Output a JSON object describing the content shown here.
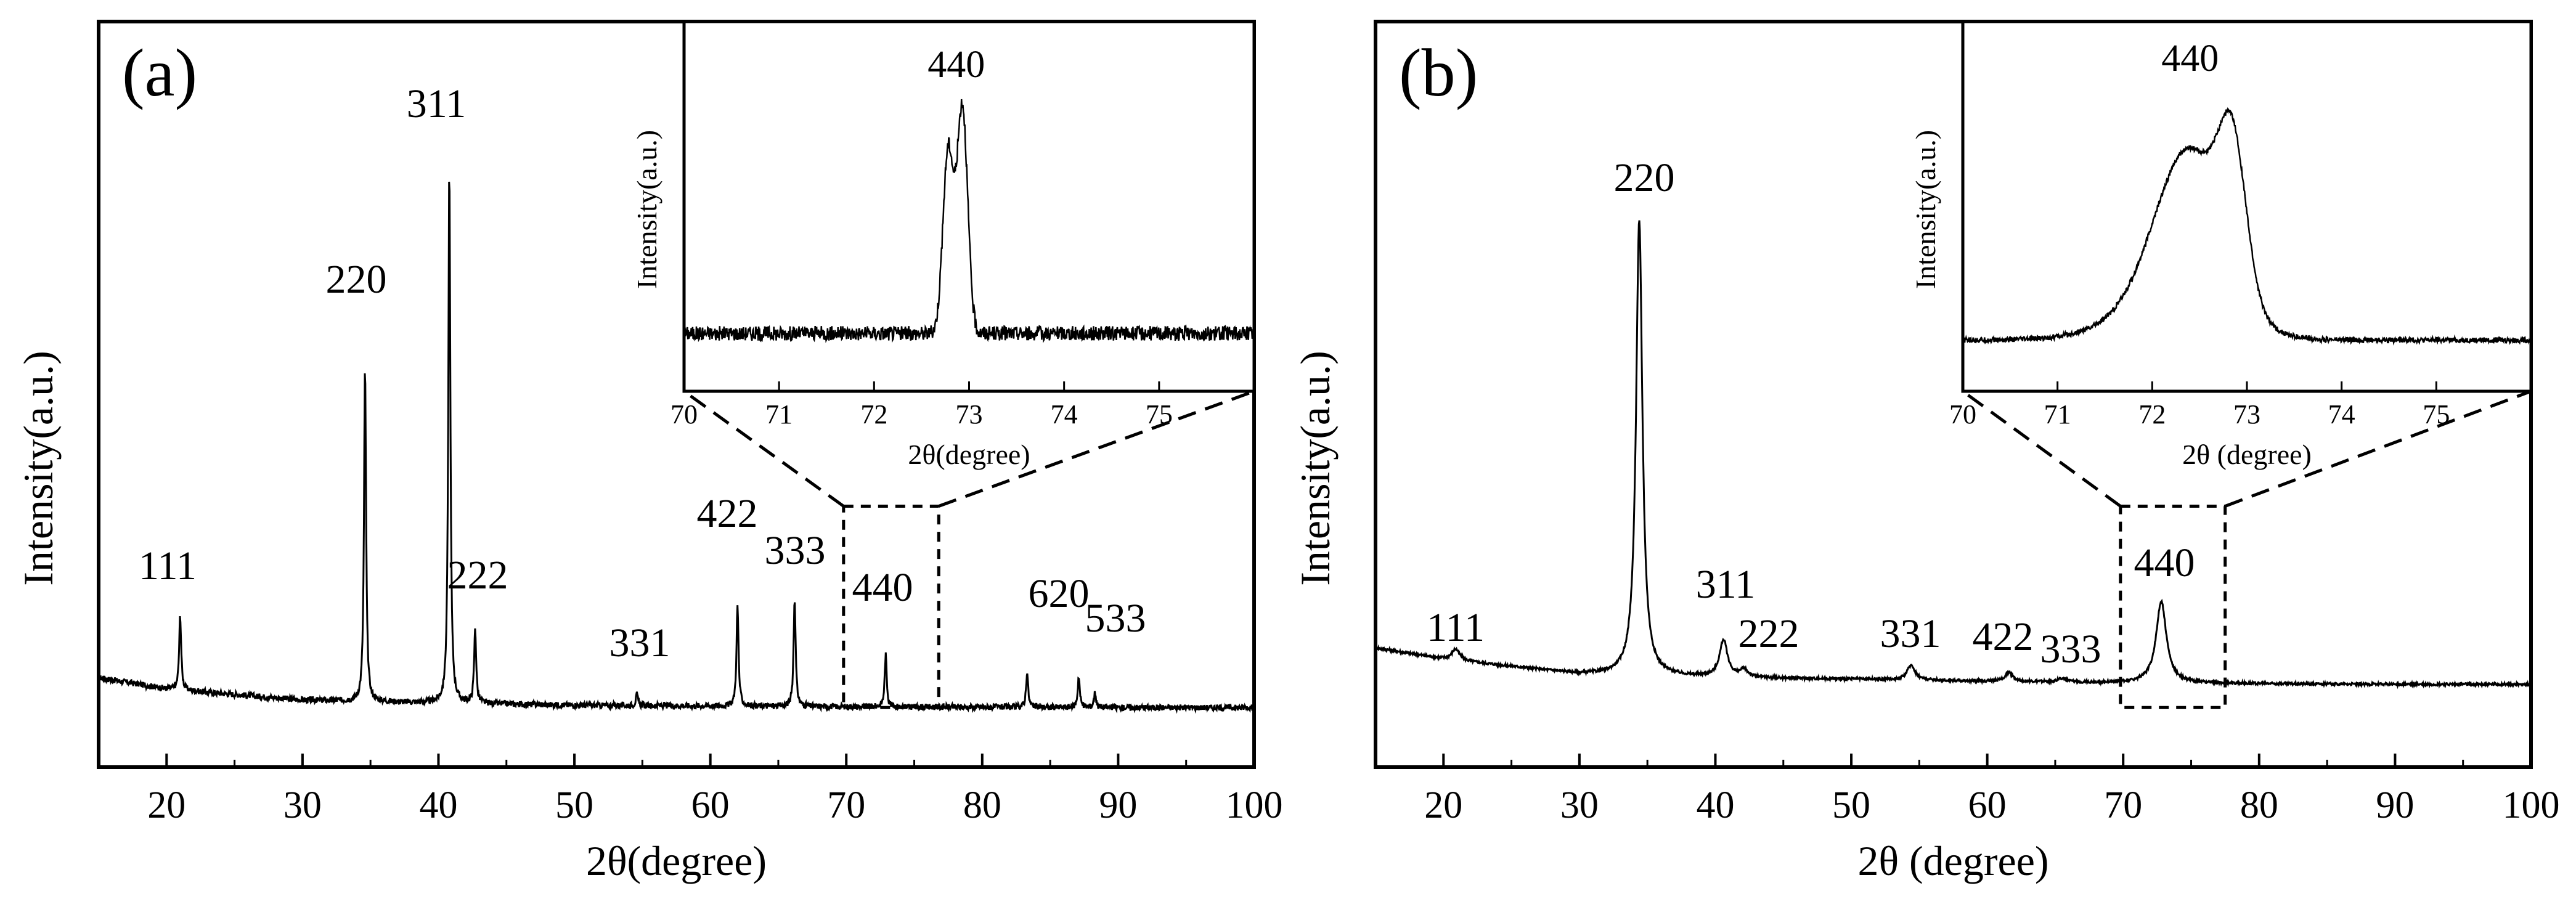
{
  "chart_data": [
    {
      "type": "line",
      "panel_label": "(a)",
      "xlabel": "2θ(degree)",
      "ylabel": "Intensity(a.u.)",
      "xlim": [
        15,
        100
      ],
      "ylim": [
        0,
        100
      ],
      "xticks": [
        20,
        30,
        40,
        50,
        60,
        70,
        80,
        90,
        100
      ],
      "baseline": {
        "x": [
          15,
          20,
          30,
          40,
          50,
          60,
          70,
          80,
          90,
          100
        ],
        "y": [
          12,
          10.5,
          9,
          8.6,
          8.3,
          8.2,
          8.1,
          8.05,
          8.0,
          8.0
        ]
      },
      "peaks": [
        {
          "label": "111",
          "x": 21.0,
          "height": 100,
          "h": 10.0
        },
        {
          "label": "220",
          "x": 34.6,
          "height": 100,
          "h": 45.0
        },
        {
          "label": "311",
          "x": 40.8,
          "height": 100,
          "h": 72.0
        },
        {
          "label": "222",
          "x": 42.7,
          "height": 100,
          "h": 10.0
        },
        {
          "label": "331",
          "x": 54.6,
          "height": 100,
          "h": 1.5
        },
        {
          "label": "422",
          "x": 62.0,
          "height": 100,
          "h": 13.5
        },
        {
          "label": "333",
          "x": 66.2,
          "height": 100,
          "h": 14.5
        },
        {
          "label": "440",
          "x": 72.9,
          "height": 100,
          "h": 7.0
        },
        {
          "label": "620",
          "x": 83.3,
          "height": 100,
          "h": 4.8
        },
        {
          "label": "533",
          "x": 87.1,
          "height": 100,
          "h": 4.2
        },
        {
          "label": "",
          "x": 88.3,
          "height": 100,
          "h": 2.0
        }
      ],
      "zoom_box": {
        "x": [
          69.8,
          76.8
        ],
        "y": [
          8,
          35
        ]
      },
      "inset": {
        "xlabel": "2θ(degree)",
        "ylabel": "Intensity(a.u.)",
        "peak_label": "440",
        "xlim": [
          70,
          76
        ],
        "xticks": [
          70,
          71,
          72,
          73,
          74,
          75
        ],
        "peaks": [
          {
            "x": 72.78,
            "h": 55,
            "w": 0.07
          },
          {
            "x": 72.93,
            "h": 68,
            "w": 0.07
          }
        ],
        "baseline": 10,
        "noise": 2.2
      }
    },
    {
      "type": "line",
      "panel_label": "(b)",
      "xlabel": "2θ (degree)",
      "ylabel": "Intensity(a.u.)",
      "xlim": [
        15,
        100
      ],
      "ylim": [
        0,
        100
      ],
      "xticks": [
        20,
        30,
        40,
        50,
        60,
        70,
        80,
        90,
        100
      ],
      "baseline": {
        "x": [
          15,
          20,
          30,
          40,
          50,
          60,
          70,
          80,
          90,
          100
        ],
        "y": [
          16,
          14.5,
          12.5,
          12,
          11.8,
          11.5,
          11.3,
          11.2,
          11.1,
          11.1
        ]
      },
      "peaks": [
        {
          "label": "111",
          "x": 20.9,
          "height": 100,
          "h": 1.5
        },
        {
          "label": "220",
          "x": 34.4,
          "height": 100,
          "h": 61.0
        },
        {
          "label": "311",
          "x": 40.6,
          "height": 100,
          "h": 5.0
        },
        {
          "label": "222",
          "x": 42.1,
          "height": 100,
          "h": 1.0
        },
        {
          "label": "331",
          "x": 54.4,
          "height": 100,
          "h": 2.0
        },
        {
          "label": "422",
          "x": 61.6,
          "height": 100,
          "h": 1.2
        },
        {
          "label": "333",
          "x": 65.5,
          "height": 100,
          "h": 0.5
        },
        {
          "label": "440",
          "x": 72.8,
          "height": 100,
          "h": 11.0
        }
      ],
      "zoom_box": {
        "x": [
          69.8,
          77.5
        ],
        "y": [
          8,
          35
        ]
      },
      "inset": {
        "xlabel": "2θ (degree)",
        "ylabel": "Intensity(a.u.)",
        "peak_label": "440",
        "xlim": [
          70,
          76
        ],
        "xticks": [
          70,
          71,
          72,
          73,
          74,
          75
        ],
        "peaks": [
          {
            "x": 72.4,
            "h": 48,
            "w": 0.45
          },
          {
            "x": 72.85,
            "h": 40,
            "w": 0.18
          }
        ],
        "baseline": 8,
        "noise": 0.8
      }
    }
  ]
}
